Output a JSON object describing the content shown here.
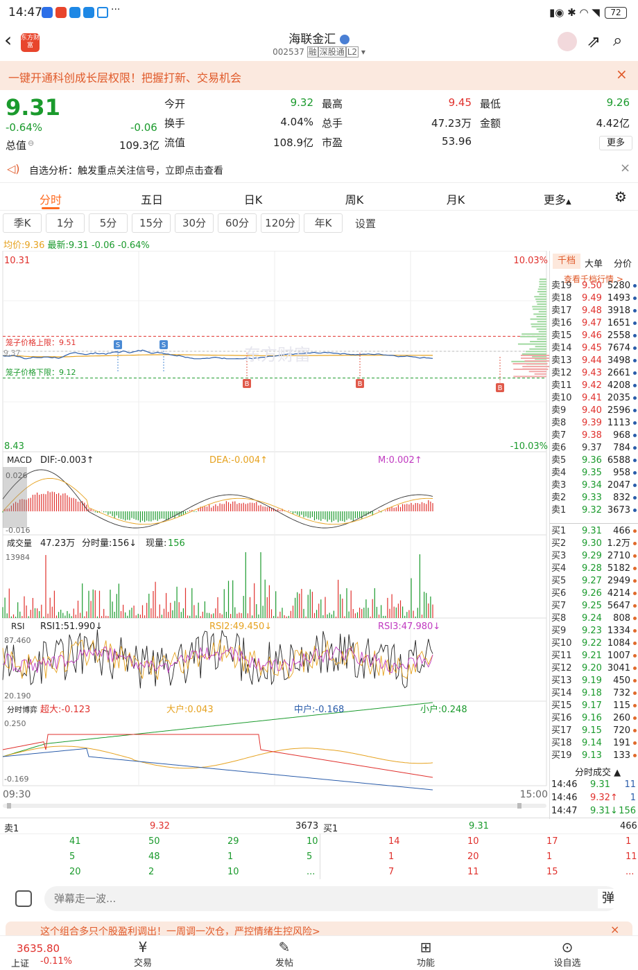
{
  "status": {
    "time": "14:47",
    "battery": "72",
    "more": "···"
  },
  "nav": {
    "title": "海联金汇",
    "code": "002537",
    "tags": [
      "融",
      "深股通",
      "L2"
    ],
    "logo": "东方财富"
  },
  "banner": {
    "text": "一键开通科创成长层权限！把握打新、交易机会"
  },
  "quote": {
    "price": "9.31",
    "pct": "-0.64%",
    "chg": "-0.06",
    "total_value_label": "总值",
    "total_value": "109.3亿",
    "cells": [
      {
        "label": "今开",
        "value": "9.32",
        "color": "green"
      },
      {
        "label": "最高",
        "value": "9.45",
        "color": "red"
      },
      {
        "label": "最低",
        "value": "9.26",
        "color": "green"
      },
      {
        "label": "换手",
        "value": "4.04%",
        "color": "dark"
      },
      {
        "label": "总手",
        "value": "47.23万",
        "color": "dark"
      },
      {
        "label": "金额",
        "value": "4.42亿",
        "color": "dark"
      },
      {
        "label": "流值",
        "value": "108.9亿",
        "color": "dark"
      },
      {
        "label": "市盈",
        "value": "53.96",
        "color": "dark"
      }
    ],
    "more": "更多"
  },
  "hint": {
    "text": "自选分析：触发重点关注信号，立即点击查看"
  },
  "tabs": [
    "分时",
    "五日",
    "日K",
    "周K",
    "月K",
    "更多"
  ],
  "ktabs": [
    "季K",
    "1分",
    "5分",
    "15分",
    "30分",
    "60分",
    "120分",
    "年K",
    "设置"
  ],
  "avgline": {
    "avg_label": "均价:",
    "avg": "9.36",
    "latest_label": "最新:",
    "latest": "9.31",
    "chg": "-0.06",
    "pct": "-0.64%"
  },
  "main_chart": {
    "top_price": "10.31",
    "bot_price": "8.43",
    "top_pct": "10.03%",
    "bot_pct": "-10.03%",
    "upper_label": "笼子价格上限：9.51",
    "lower_label": "笼子价格下限：9.12",
    "left_mark": "9.37",
    "watermark": "东方财富",
    "sell_mark": "S",
    "buy_mark": "B"
  },
  "macd": {
    "label": "MACD",
    "dif": "DIF:-0.003↑",
    "dea": "DEA:-0.004↑",
    "m": "M:0.002↑",
    "top": "0.026",
    "bot": "-0.016"
  },
  "vol": {
    "label": "成交量",
    "total": "47.23万",
    "tick": "分时量:156↓",
    "cur_label": "现量:",
    "cur": "156",
    "top": "13984"
  },
  "rsi": {
    "label": "RSI",
    "r1": "RSI1:51.990↓",
    "r2": "RSI2:49.450↓",
    "r3": "RSI3:47.980↓",
    "top": "87.460",
    "bot": "20.190"
  },
  "flow": {
    "label": "分时博弈",
    "super": "超大:-0.123",
    "big": "大户:0.043",
    "mid": "中户:-0.168",
    "small": "小户:0.248",
    "top": "0.250",
    "bot": "-0.169",
    "t_start": "09:30",
    "t_end": "15:00"
  },
  "side": {
    "tabs": [
      "千档",
      "大单",
      "分价"
    ],
    "link": "查看千档行情 >",
    "trade_title": "分时成交",
    "asks": [
      [
        "卖19",
        "9.50",
        "5280"
      ],
      [
        "卖18",
        "9.49",
        "1493"
      ],
      [
        "卖17",
        "9.48",
        "3918"
      ],
      [
        "卖16",
        "9.47",
        "1651"
      ],
      [
        "卖15",
        "9.46",
        "2558"
      ],
      [
        "卖14",
        "9.45",
        "7674"
      ],
      [
        "卖13",
        "9.44",
        "3498"
      ],
      [
        "卖12",
        "9.43",
        "2661"
      ],
      [
        "卖11",
        "9.42",
        "4208"
      ],
      [
        "卖10",
        "9.41",
        "2035"
      ],
      [
        "卖9",
        "9.40",
        "2596"
      ],
      [
        "卖8",
        "9.39",
        "1113"
      ],
      [
        "卖7",
        "9.38",
        "968"
      ],
      [
        "卖6",
        "9.37",
        "784"
      ],
      [
        "卖5",
        "9.36",
        "6588"
      ],
      [
        "卖4",
        "9.35",
        "958"
      ],
      [
        "卖3",
        "9.34",
        "2047"
      ],
      [
        "卖2",
        "9.33",
        "832"
      ],
      [
        "卖1",
        "9.32",
        "3673"
      ]
    ],
    "bids": [
      [
        "买1",
        "9.31",
        "466"
      ],
      [
        "买2",
        "9.30",
        "1.2万"
      ],
      [
        "买3",
        "9.29",
        "2710"
      ],
      [
        "买4",
        "9.28",
        "5182"
      ],
      [
        "买5",
        "9.27",
        "2949"
      ],
      [
        "买6",
        "9.26",
        "4214"
      ],
      [
        "买7",
        "9.25",
        "5647"
      ],
      [
        "买8",
        "9.24",
        "808"
      ],
      [
        "买9",
        "9.23",
        "1334"
      ],
      [
        "买10",
        "9.22",
        "1084"
      ],
      [
        "买11",
        "9.21",
        "1007"
      ],
      [
        "买12",
        "9.20",
        "3041"
      ],
      [
        "买13",
        "9.19",
        "450"
      ],
      [
        "买14",
        "9.18",
        "732"
      ],
      [
        "买15",
        "9.17",
        "115"
      ],
      [
        "买16",
        "9.16",
        "260"
      ],
      [
        "买17",
        "9.15",
        "720"
      ],
      [
        "买18",
        "9.14",
        "191"
      ],
      [
        "买19",
        "9.13",
        "133"
      ]
    ],
    "trades": [
      [
        "14:46",
        "9.31",
        "11"
      ],
      [
        "14:46",
        "9.32↑",
        "1"
      ],
      [
        "14:47",
        "9.31↓",
        "156"
      ]
    ]
  },
  "queue": {
    "sell_label": "卖1",
    "sell_price": "9.32",
    "sell_vol": "3673",
    "buy_label": "买1",
    "buy_price": "9.31",
    "buy_vol": "466",
    "sell_rows": [
      [
        "41",
        "50",
        "29",
        "10"
      ],
      [
        "5",
        "48",
        "1",
        "5"
      ],
      [
        "20",
        "2",
        "10",
        "..."
      ]
    ],
    "buy_rows": [
      [
        "14",
        "10",
        "17",
        "1"
      ],
      [
        "1",
        "20",
        "1",
        "11"
      ],
      [
        "7",
        "11",
        "15",
        "..."
      ]
    ]
  },
  "danmu": {
    "placeholder": "弹幕走一波...",
    "btn": "弹"
  },
  "notice": {
    "text": "这个组合多只个股盈利调出！一周调一次仓，严控情绪生控风险>"
  },
  "footer": {
    "index_value": "3635.80",
    "index_name": "上证",
    "index_pct": "-0.11%",
    "items": [
      "交易",
      "发帖",
      "功能",
      "设自选"
    ]
  },
  "colors": {
    "up": "#e0302c",
    "down": "#1a9a2c",
    "accent": "#ff6a1f",
    "price_line": "#2a5caa",
    "avg_line": "#e6a21f"
  }
}
